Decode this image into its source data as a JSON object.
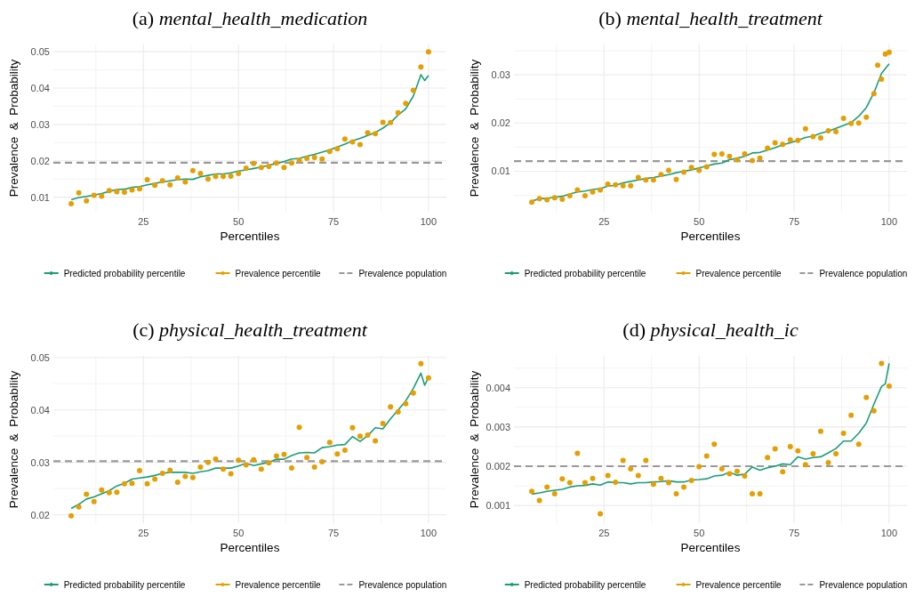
{
  "chart_data": [
    {
      "type": "line",
      "title": "(a) mental_health_medication",
      "xlabel": "Percentiles",
      "ylabel": "Prevalence & Probability",
      "xlim": [
        1.3,
        104.7
      ],
      "ylim": [
        0.006,
        0.052
      ],
      "xticks": [
        {
          "value": 12.5,
          "label": null
        },
        25,
        {
          "value": 37.5,
          "label": null
        },
        50,
        {
          "value": 62.5,
          "label": null
        },
        75,
        {
          "value": 87.5,
          "label": null
        },
        100
      ],
      "yticks": [
        0.01,
        {
          "value": 0.015,
          "label": null
        },
        0.02,
        {
          "value": 0.025,
          "label": null
        },
        0.03,
        {
          "value": 0.035,
          "label": null
        },
        0.04,
        {
          "value": 0.045,
          "label": null
        },
        0.05
      ],
      "grid": true,
      "legend": "bottom",
      "series": [
        {
          "name": "Predicted probability percentile",
          "type": "line",
          "color": "#1b9e77",
          "x": [
            6,
            8,
            10,
            12,
            14,
            16,
            18,
            20,
            22,
            24,
            26,
            28,
            30,
            32,
            34,
            36,
            38,
            40,
            42,
            44,
            46,
            48,
            50,
            52,
            54,
            56,
            58,
            60,
            62,
            64,
            66,
            68,
            70,
            72,
            74,
            76,
            78,
            80,
            82,
            84,
            86,
            88,
            90,
            92,
            94,
            96,
            98,
            99,
            100
          ],
          "values": [
            0.0093,
            0.0099,
            0.0102,
            0.0106,
            0.011,
            0.0116,
            0.0121,
            0.0122,
            0.0127,
            0.0129,
            0.0134,
            0.0138,
            0.0142,
            0.0145,
            0.0148,
            0.015,
            0.0149,
            0.0156,
            0.016,
            0.0164,
            0.0164,
            0.0167,
            0.0172,
            0.0175,
            0.0179,
            0.0183,
            0.0188,
            0.0193,
            0.0198,
            0.0205,
            0.0207,
            0.0213,
            0.0218,
            0.0224,
            0.023,
            0.0238,
            0.0246,
            0.0255,
            0.0262,
            0.027,
            0.0278,
            0.029,
            0.0305,
            0.0326,
            0.0343,
            0.0378,
            0.0437,
            0.0421,
            0.0435
          ]
        },
        {
          "name": "Prevalence percentile",
          "type": "scatter",
          "marker": "circle",
          "color": "#e69f00",
          "x": [
            6,
            8,
            10,
            12,
            14,
            16,
            18,
            20,
            22,
            24,
            26,
            28,
            30,
            32,
            34,
            36,
            38,
            40,
            42,
            44,
            46,
            48,
            50,
            52,
            54,
            56,
            58,
            60,
            62,
            64,
            66,
            68,
            70,
            72,
            74,
            76,
            78,
            80,
            82,
            84,
            86,
            88,
            90,
            92,
            94,
            96,
            98,
            100
          ],
          "values": [
            0.0082,
            0.0112,
            0.009,
            0.0105,
            0.0103,
            0.0118,
            0.0115,
            0.0114,
            0.012,
            0.0123,
            0.0148,
            0.0133,
            0.0145,
            0.0134,
            0.0153,
            0.0142,
            0.0173,
            0.0165,
            0.015,
            0.0157,
            0.0157,
            0.0158,
            0.0165,
            0.018,
            0.0193,
            0.0182,
            0.0185,
            0.0194,
            0.0182,
            0.0194,
            0.0202,
            0.0207,
            0.0209,
            0.0205,
            0.0226,
            0.0233,
            0.026,
            0.0252,
            0.0245,
            0.0277,
            0.0275,
            0.0306,
            0.0305,
            0.0332,
            0.0358,
            0.0394,
            0.0458,
            0.05
          ]
        }
      ],
      "ref_lines": [
        {
          "axis": "y",
          "value": 0.0195,
          "label": "Prevalence population",
          "color": "#999999",
          "line_style": "dashed"
        }
      ]
    },
    {
      "type": "line",
      "title": "(b) mental_health_treatment",
      "xlabel": "Percentiles",
      "ylabel": "Prevalence & Probability",
      "xlim": [
        1.3,
        104.7
      ],
      "ylim": [
        0.0016,
        0.0363
      ],
      "xticks": [
        {
          "value": 12.5,
          "label": null
        },
        25,
        {
          "value": 37.5,
          "label": null
        },
        50,
        {
          "value": 62.5,
          "label": null
        },
        75,
        {
          "value": 87.5,
          "label": null
        },
        100
      ],
      "yticks": [
        {
          "value": 0.005,
          "label": null
        },
        0.01,
        {
          "value": 0.015,
          "label": null
        },
        0.02,
        {
          "value": 0.025,
          "label": null
        },
        0.03,
        {
          "value": 0.035,
          "label": null
        }
      ],
      "grid": true,
      "legend": "bottom",
      "series": [
        {
          "name": "Predicted probability percentile",
          "type": "line",
          "color": "#1b9e77",
          "x": [
            6,
            8,
            10,
            12,
            14,
            16,
            18,
            20,
            22,
            24,
            26,
            28,
            30,
            32,
            34,
            36,
            38,
            40,
            42,
            44,
            46,
            48,
            50,
            52,
            54,
            56,
            58,
            60,
            62,
            64,
            66,
            68,
            70,
            72,
            74,
            76,
            78,
            80,
            82,
            84,
            86,
            88,
            90,
            92,
            94,
            96,
            98,
            100
          ],
          "values": [
            0.0038,
            0.0043,
            0.0044,
            0.0046,
            0.0048,
            0.0053,
            0.0057,
            0.0059,
            0.0062,
            0.0064,
            0.0069,
            0.0071,
            0.0076,
            0.0079,
            0.0082,
            0.0085,
            0.0087,
            0.009,
            0.0093,
            0.0097,
            0.01,
            0.0103,
            0.0107,
            0.0111,
            0.0115,
            0.0117,
            0.0124,
            0.0127,
            0.0131,
            0.0138,
            0.0139,
            0.0144,
            0.0149,
            0.0155,
            0.0159,
            0.0164,
            0.017,
            0.0173,
            0.0179,
            0.0183,
            0.0189,
            0.0195,
            0.0201,
            0.0214,
            0.0232,
            0.0263,
            0.0303,
            0.0323
          ]
        },
        {
          "name": "Prevalence percentile",
          "type": "scatter",
          "marker": "circle",
          "color": "#e69f00",
          "x": [
            6,
            8,
            10,
            12,
            14,
            16,
            18,
            20,
            22,
            24,
            26,
            28,
            30,
            32,
            34,
            36,
            38,
            40,
            42,
            44,
            46,
            48,
            50,
            52,
            54,
            56,
            58,
            60,
            62,
            64,
            66,
            68,
            70,
            72,
            74,
            76,
            78,
            80,
            82,
            84,
            86,
            88,
            90,
            92,
            94,
            96,
            97,
            98,
            99,
            100
          ],
          "values": [
            0.0036,
            0.0043,
            0.0041,
            0.0045,
            0.0042,
            0.0049,
            0.0061,
            0.0049,
            0.0057,
            0.0061,
            0.0073,
            0.0072,
            0.007,
            0.007,
            0.0087,
            0.0082,
            0.0082,
            0.0093,
            0.0102,
            0.0083,
            0.0098,
            0.0108,
            0.0102,
            0.0109,
            0.0135,
            0.0136,
            0.0131,
            0.0124,
            0.0136,
            0.0122,
            0.0127,
            0.0148,
            0.0159,
            0.0156,
            0.0165,
            0.0164,
            0.0188,
            0.0172,
            0.0169,
            0.0184,
            0.0182,
            0.021,
            0.0199,
            0.02,
            0.0212,
            0.0261,
            0.032,
            0.0291,
            0.0343,
            0.0347
          ]
        }
      ],
      "ref_lines": [
        {
          "axis": "y",
          "value": 0.0121,
          "label": "Prevalence population",
          "color": "#999999",
          "line_style": "dashed"
        }
      ]
    },
    {
      "type": "line",
      "title": "(c) physical_health_treatment",
      "xlabel": "Percentiles",
      "ylabel": "Prevalence & Probability",
      "xlim": [
        1.3,
        104.7
      ],
      "ylim": [
        0.0184,
        0.0503
      ],
      "xticks": [
        {
          "value": 12.5,
          "label": null
        },
        25,
        {
          "value": 37.5,
          "label": null
        },
        50,
        {
          "value": 62.5,
          "label": null
        },
        75,
        {
          "value": 87.5,
          "label": null
        },
        100
      ],
      "yticks": [
        0.02,
        {
          "value": 0.025,
          "label": null
        },
        0.03,
        {
          "value": 0.035,
          "label": null
        },
        0.04,
        {
          "value": 0.045,
          "label": null
        },
        0.05
      ],
      "grid": true,
      "legend": "bottom",
      "series": [
        {
          "name": "Predicted probability percentile",
          "type": "line",
          "color": "#1b9e77",
          "x": [
            6,
            8,
            10,
            12,
            14,
            16,
            18,
            20,
            22,
            24,
            26,
            28,
            30,
            32,
            34,
            36,
            38,
            40,
            42,
            44,
            46,
            48,
            50,
            52,
            54,
            56,
            58,
            60,
            62,
            64,
            66,
            68,
            70,
            72,
            74,
            76,
            78,
            80,
            82,
            84,
            86,
            88,
            90,
            92,
            94,
            96,
            98,
            99,
            100
          ],
          "values": [
            0.0212,
            0.022,
            0.023,
            0.0234,
            0.024,
            0.0246,
            0.0255,
            0.026,
            0.0268,
            0.027,
            0.0272,
            0.0275,
            0.0279,
            0.0281,
            0.0281,
            0.0281,
            0.0279,
            0.0282,
            0.0284,
            0.0289,
            0.0289,
            0.0289,
            0.0293,
            0.0298,
            0.0294,
            0.0297,
            0.03,
            0.0306,
            0.0306,
            0.0313,
            0.0318,
            0.0319,
            0.0318,
            0.0328,
            0.033,
            0.0333,
            0.0334,
            0.0349,
            0.034,
            0.0351,
            0.0366,
            0.0364,
            0.0383,
            0.04,
            0.0417,
            0.0441,
            0.047,
            0.0447,
            0.0462
          ]
        },
        {
          "name": "Prevalence percentile",
          "type": "scatter",
          "marker": "circle",
          "color": "#e69f00",
          "x": [
            6,
            8,
            10,
            12,
            14,
            16,
            18,
            20,
            22,
            24,
            26,
            28,
            30,
            32,
            34,
            36,
            38,
            40,
            42,
            44,
            46,
            48,
            50,
            52,
            54,
            56,
            58,
            60,
            62,
            64,
            66,
            68,
            70,
            72,
            74,
            76,
            78,
            80,
            82,
            84,
            86,
            88,
            90,
            92,
            94,
            96,
            98,
            100
          ],
          "values": [
            0.0198,
            0.0215,
            0.0239,
            0.0225,
            0.0247,
            0.0242,
            0.0243,
            0.0259,
            0.026,
            0.0284,
            0.0259,
            0.0268,
            0.0279,
            0.0285,
            0.0262,
            0.0273,
            0.0271,
            0.0291,
            0.03,
            0.0306,
            0.0287,
            0.0278,
            0.0304,
            0.0295,
            0.0305,
            0.0287,
            0.0299,
            0.0312,
            0.0315,
            0.0289,
            0.0367,
            0.0309,
            0.0291,
            0.0301,
            0.0338,
            0.0316,
            0.0323,
            0.0366,
            0.035,
            0.0352,
            0.0341,
            0.0374,
            0.0406,
            0.0396,
            0.0412,
            0.0432,
            0.0488,
            0.0461
          ]
        }
      ],
      "ref_lines": [
        {
          "axis": "y",
          "value": 0.0302,
          "label": "Prevalence population",
          "color": "#999999",
          "line_style": "dashed"
        }
      ]
    },
    {
      "type": "line",
      "title": "(d) physical_health_ic",
      "xlabel": "Percentiles",
      "ylabel": "Prevalence & Probability",
      "xlim": [
        1.3,
        104.7
      ],
      "ylim": [
        0.00055,
        0.00481
      ],
      "xticks": [
        {
          "value": 12.5,
          "label": null
        },
        25,
        {
          "value": 37.5,
          "label": null
        },
        50,
        {
          "value": 62.5,
          "label": null
        },
        75,
        {
          "value": 87.5,
          "label": null
        },
        100
      ],
      "yticks": [
        0.001,
        {
          "value": 0.0015,
          "label": null
        },
        0.002,
        {
          "value": 0.0025,
          "label": null
        },
        0.003,
        {
          "value": 0.0035,
          "label": null
        },
        0.004,
        {
          "value": 0.0045,
          "label": null
        }
      ],
      "grid": true,
      "legend": "bottom",
      "series": [
        {
          "name": "Predicted probability percentile",
          "type": "line",
          "color": "#1b9e77",
          "x": [
            6,
            8,
            10,
            12,
            14,
            16,
            18,
            20,
            22,
            24,
            26,
            28,
            30,
            32,
            34,
            36,
            38,
            40,
            42,
            44,
            46,
            48,
            50,
            52,
            54,
            56,
            58,
            60,
            62,
            64,
            66,
            68,
            70,
            72,
            74,
            76,
            78,
            80,
            82,
            84,
            86,
            88,
            90,
            92,
            94,
            96,
            98,
            99,
            100
          ],
          "values": [
            0.00129,
            0.00132,
            0.00136,
            0.00139,
            0.00141,
            0.00147,
            0.0015,
            0.00151,
            0.00155,
            0.00152,
            0.0016,
            0.00158,
            0.00158,
            0.00155,
            0.00158,
            0.00158,
            0.0016,
            0.00161,
            0.00163,
            0.0016,
            0.0016,
            0.00165,
            0.00166,
            0.00168,
            0.00175,
            0.00177,
            0.00185,
            0.00177,
            0.0018,
            0.00198,
            0.0019,
            0.00196,
            0.002,
            0.00206,
            0.00204,
            0.00224,
            0.00218,
            0.00222,
            0.00224,
            0.00234,
            0.00245,
            0.00264,
            0.00264,
            0.00284,
            0.0031,
            0.00358,
            0.00403,
            0.0041,
            0.00462
          ]
        },
        {
          "name": "Prevalence percentile",
          "type": "scatter",
          "marker": "circle",
          "color": "#e69f00",
          "x": [
            6,
            8,
            10,
            12,
            14,
            16,
            18,
            20,
            22,
            24,
            26,
            28,
            30,
            32,
            34,
            36,
            38,
            40,
            42,
            44,
            46,
            48,
            50,
            52,
            54,
            56,
            58,
            60,
            62,
            64,
            66,
            68,
            70,
            72,
            74,
            76,
            78,
            80,
            82,
            84,
            86,
            88,
            90,
            92,
            94,
            96,
            98,
            100
          ],
          "values": [
            0.00136,
            0.00113,
            0.00147,
            0.0013,
            0.00168,
            0.00158,
            0.00233,
            0.00158,
            0.00169,
            0.00079,
            0.00176,
            0.00159,
            0.00215,
            0.00193,
            0.00176,
            0.00215,
            0.00154,
            0.00169,
            0.00158,
            0.0013,
            0.00147,
            0.00164,
            0.00199,
            0.00226,
            0.00256,
            0.00193,
            0.00181,
            0.00187,
            0.00175,
            0.0013,
            0.0013,
            0.00222,
            0.00244,
            0.00186,
            0.0025,
            0.00239,
            0.00204,
            0.00232,
            0.00289,
            0.00209,
            0.00232,
            0.00284,
            0.0033,
            0.00256,
            0.00375,
            0.00341,
            0.00462,
            0.00404
          ]
        }
      ],
      "ref_lines": [
        {
          "axis": "y",
          "value": 0.002,
          "label": "Prevalence population",
          "color": "#999999",
          "line_style": "dashed"
        }
      ]
    }
  ]
}
